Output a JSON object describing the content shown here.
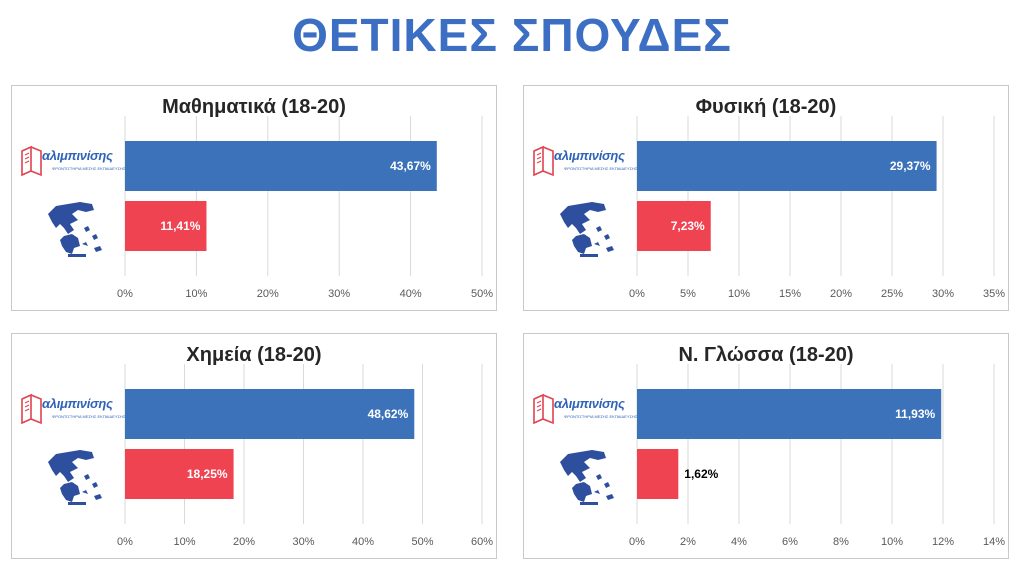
{
  "header": {
    "title": "ΘΕΤΙΚΕΣ ΣΠΟΥΔΕΣ"
  },
  "brand": {
    "name": "αλιμπινίσης",
    "tagline": "ΦΡΟΝΤΙΣΤΗΡΙΑ ΜΕΣΗΣ ΕΚΠΑΙΔΕΥΣΗΣ"
  },
  "colors": {
    "title": "#3c6fc4",
    "bar_blue": "#3b72ba",
    "bar_red": "#ef4352",
    "grid": "#d9d9d9"
  },
  "icons": {
    "row1": "alimpinisis-logo",
    "row2": "greece-map-icon"
  },
  "chart_data": [
    {
      "type": "bar",
      "orientation": "horizontal",
      "title": "Μαθηματικά (18-20)",
      "values": [
        43.67,
        11.41
      ],
      "labels": [
        "43,67%",
        "11,41%"
      ],
      "xlim": [
        0,
        50
      ],
      "ticks": [
        "0%",
        "10%",
        "20%",
        "30%",
        "40%",
        "50%"
      ],
      "grid": true
    },
    {
      "type": "bar",
      "orientation": "horizontal",
      "title": "Φυσική (18-20)",
      "values": [
        29.37,
        7.23
      ],
      "labels": [
        "29,37%",
        "7,23%"
      ],
      "xlim": [
        0,
        35
      ],
      "ticks": [
        "0%",
        "5%",
        "10%",
        "15%",
        "20%",
        "25%",
        "30%",
        "35%"
      ],
      "grid": true
    },
    {
      "type": "bar",
      "orientation": "horizontal",
      "title": "Χημεία (18-20)",
      "values": [
        48.62,
        18.25
      ],
      "labels": [
        "48,62%",
        "18,25%"
      ],
      "xlim": [
        0,
        60
      ],
      "ticks": [
        "0%",
        "10%",
        "20%",
        "30%",
        "40%",
        "50%",
        "60%"
      ],
      "grid": true
    },
    {
      "type": "bar",
      "orientation": "horizontal",
      "title": "Ν. Γλώσσα (18-20)",
      "values": [
        11.93,
        1.62
      ],
      "labels": [
        "11,93%",
        "1,62%"
      ],
      "xlim": [
        0,
        14
      ],
      "ticks": [
        "0%",
        "2%",
        "4%",
        "6%",
        "8%",
        "10%",
        "12%",
        "14%"
      ],
      "grid": true
    }
  ]
}
